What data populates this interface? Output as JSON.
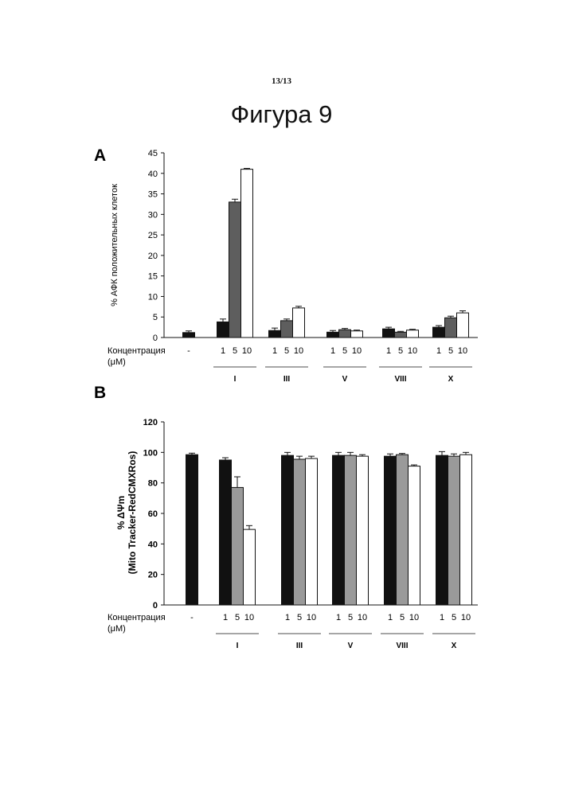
{
  "page": {
    "number": "13/13",
    "title": "Фигура 9"
  },
  "colors": {
    "bar1": "#111111",
    "bar2": "#5e5e5e",
    "bar3": "#ffffff",
    "barB2": "#9a9a9a"
  },
  "chart_data": [
    {
      "panel_label": "A",
      "type": "bar",
      "ylabel": "% АФК положительных клеток",
      "ylim": [
        0,
        45
      ],
      "yticks": [
        0,
        5,
        10,
        15,
        20,
        25,
        30,
        35,
        40,
        45
      ],
      "concentration_label_line1": "Концентрация",
      "concentration_label_line2": "(μM)",
      "groups": [
        {
          "label": "",
          "control_label": "-",
          "concentrations": [],
          "values": [
            1.2
          ],
          "errors": [
            0.4
          ]
        },
        {
          "label": "I",
          "concentrations": [
            "1",
            "5",
            "10"
          ],
          "values": [
            3.8,
            33,
            41
          ],
          "errors": [
            0.7,
            0.7,
            0.2
          ]
        },
        {
          "label": "III",
          "concentrations": [
            "1",
            "5",
            "10"
          ],
          "values": [
            1.7,
            4.1,
            7.2
          ],
          "errors": [
            0.6,
            0.4,
            0.4
          ]
        },
        {
          "label": "V",
          "concentrations": [
            "1",
            "5",
            "10"
          ],
          "values": [
            1.3,
            1.9,
            1.6
          ],
          "errors": [
            0.4,
            0.3,
            0.2
          ]
        },
        {
          "label": "VIII",
          "concentrations": [
            "1",
            "5",
            "10"
          ],
          "values": [
            2.1,
            1.3,
            1.8
          ],
          "errors": [
            0.4,
            0.2,
            0.2
          ]
        },
        {
          "label": "X",
          "concentrations": [
            "1",
            "5",
            "10"
          ],
          "values": [
            2.5,
            4.8,
            6.0
          ],
          "errors": [
            0.4,
            0.4,
            0.5
          ]
        }
      ]
    },
    {
      "panel_label": "B",
      "type": "bar",
      "ylabel_line1": "% ΔΨm",
      "ylabel_line2": "(Mito Tracker-RedCMXRos)",
      "ylim": [
        0,
        120
      ],
      "yticks": [
        0,
        20,
        40,
        60,
        80,
        100,
        120
      ],
      "concentration_label_line1": "Концентрация",
      "concentration_label_line2": "(μM)",
      "groups": [
        {
          "label": "",
          "control_label": "-",
          "concentrations": [],
          "values": [
            98.5
          ],
          "errors": [
            1.0
          ]
        },
        {
          "label": "I",
          "concentrations": [
            "1",
            "5",
            "10"
          ],
          "values": [
            95,
            77,
            49.5
          ],
          "errors": [
            1.5,
            7,
            2.5
          ]
        },
        {
          "label": "III",
          "concentrations": [
            "1",
            "5",
            "10"
          ],
          "values": [
            98,
            95.5,
            96
          ],
          "errors": [
            2,
            2,
            1.5
          ]
        },
        {
          "label": "V",
          "concentrations": [
            "1",
            "5",
            "10"
          ],
          "values": [
            98,
            98,
            97.5
          ],
          "errors": [
            2,
            2,
            1
          ]
        },
        {
          "label": "VIII",
          "concentrations": [
            "1",
            "5",
            "10"
          ],
          "values": [
            97.5,
            98.5,
            91
          ],
          "errors": [
            1.5,
            0.8,
            0.8
          ]
        },
        {
          "label": "X",
          "concentrations": [
            "1",
            "5",
            "10"
          ],
          "values": [
            98,
            97.5,
            98.5
          ],
          "errors": [
            2.5,
            1.5,
            1.5
          ]
        }
      ]
    }
  ]
}
